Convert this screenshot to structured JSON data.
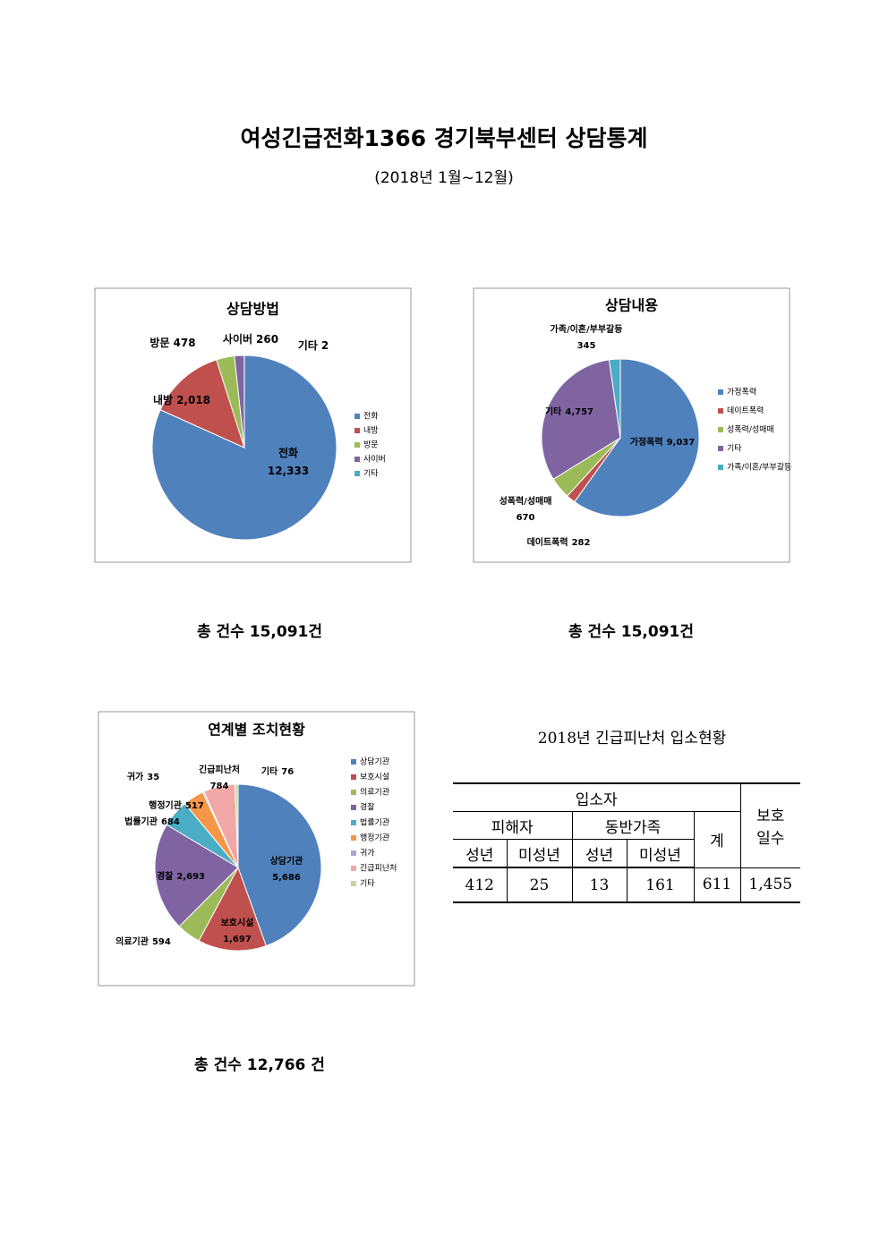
{
  "header": {
    "title": "여성긴급전화1366 경기북부센터 상담통계",
    "subtitle": "(2018년  1월~12월)"
  },
  "chart_data": [
    {
      "type": "pie",
      "title": "상담방법",
      "total": "총 건수 15,091건",
      "categories": [
        "전화",
        "내방",
        "방문",
        "사이버",
        "기타"
      ],
      "values": [
        12333,
        2018,
        478,
        260,
        2
      ],
      "value_labels": [
        "12,333",
        "2,018",
        "478",
        "260",
        "2"
      ],
      "colors": [
        "#4f81bd",
        "#c0504d",
        "#9bbb59",
        "#8064a2",
        "#4bacc6"
      ]
    },
    {
      "type": "pie",
      "title": "상담내용",
      "total": "총 건수 15,091건",
      "categories": [
        "가정폭력",
        "데이트폭력",
        "성폭력/성매매",
        "기타",
        "가족/이혼/부부갈등"
      ],
      "values": [
        9037,
        282,
        670,
        4757,
        345
      ],
      "value_labels": [
        "9,037",
        "282",
        "670",
        "4,757",
        "345"
      ],
      "colors": [
        "#4f81bd",
        "#c0504d",
        "#9bbb59",
        "#8064a2",
        "#4bacc6"
      ]
    },
    {
      "type": "pie",
      "title": "연계별 조치현황",
      "total": "총 건수 12,766 건",
      "categories": [
        "상담기관",
        "보호시설",
        "의료기관",
        "경찰",
        "법률기관",
        "행정기관",
        "귀가",
        "긴급피난처",
        "기타"
      ],
      "values": [
        5686,
        1697,
        594,
        2693,
        684,
        517,
        35,
        784,
        76
      ],
      "value_labels": [
        "5,686",
        "1,697",
        "594",
        "2,693",
        "684",
        "517",
        "35",
        "784",
        "76"
      ],
      "colors": [
        "#4f81bd",
        "#c0504d",
        "#9bbb59",
        "#8064a2",
        "#4bacc6",
        "#f79646",
        "#a9a9d9",
        "#f2a7a7",
        "#c4d79b"
      ]
    }
  ],
  "table": {
    "title": "2018년 긴급피난처 입소현황",
    "group": "입소자",
    "victim": "피해자",
    "family": "동반가족",
    "sum": "계",
    "days": "보호 일수",
    "sub": [
      "성년",
      "미성년",
      "성년",
      "미성년"
    ],
    "rows": [
      [
        "412",
        "25",
        "13",
        "161",
        "611",
        "1,455"
      ]
    ]
  }
}
